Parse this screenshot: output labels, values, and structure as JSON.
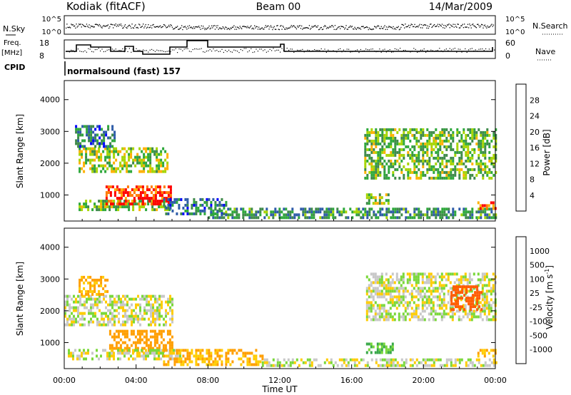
{
  "header": {
    "station": "Kodiak (fitACF)",
    "beam": "Beam 00",
    "date": "14/Mar/2009"
  },
  "left_labels": {
    "nsky": "N.Sky",
    "freq": "Freq.",
    "freq_unit": "[MHz]",
    "cpid": "CPID"
  },
  "right_labels": {
    "nsearch": "N.Search",
    "nave": "Nave"
  },
  "mini_ticks": {
    "nsky_left": [
      "10^5",
      "10^0"
    ],
    "nsky_right": [
      "10^5",
      "10^0"
    ],
    "freq_left": [
      "18",
      "8"
    ],
    "nave_right": [
      "60",
      "0"
    ]
  },
  "cpid_text": "normalsound (fast) 157",
  "x_axis": {
    "ticks": [
      "00:00",
      "04:00",
      "08:00",
      "12:00",
      "16:00",
      "20:00",
      "00:00"
    ],
    "label": "Time UT"
  },
  "colors": {
    "power_scale": [
      "#0000ff",
      "#2e5ca8",
      "#3f8a4a",
      "#2ea83b",
      "#a6d400",
      "#ffb000",
      "#ff7a00",
      "#ff0000"
    ],
    "velocity_scale": [
      "#ff0000",
      "#ff5a00",
      "#ff9e00",
      "#ffcc00",
      "#c8c8c8",
      "#7ad83a",
      "#3aa84a",
      "#2f5fa8",
      "#0000e0"
    ]
  },
  "chart_data": [
    {
      "type": "heatmap",
      "title": "",
      "xlabel": "Time UT",
      "ylabel": "Slant Range [km]",
      "xlim": [
        "00:00",
        "24:00"
      ],
      "ylim": [
        180,
        4600
      ],
      "yticks": [
        1000,
        2000,
        3000,
        4000
      ],
      "colorbar": {
        "label": "Power [dB]",
        "ticks": [
          "28",
          "24",
          "20",
          "16",
          "12",
          "8",
          "4"
        ],
        "range": [
          0,
          30
        ]
      },
      "regions": [
        {
          "t": [
            0.8,
            5.8
          ],
          "range": [
            1700,
            2500
          ],
          "level": 16
        },
        {
          "t": [
            0.6,
            2.8
          ],
          "range": [
            2500,
            3200
          ],
          "level": 8
        },
        {
          "t": [
            0.8,
            5.9
          ],
          "range": [
            500,
            850
          ],
          "level": 14
        },
        {
          "t": [
            2.3,
            5.9
          ],
          "range": [
            700,
            1300
          ],
          "level": 28
        },
        {
          "t": [
            5.5,
            9.0
          ],
          "range": [
            400,
            900
          ],
          "level": 8
        },
        {
          "t": [
            8.0,
            24.0
          ],
          "range": [
            300,
            600
          ],
          "level": 10
        },
        {
          "t": [
            16.7,
            24.0
          ],
          "range": [
            1500,
            3100
          ],
          "level": 14
        },
        {
          "t": [
            16.8,
            18.1
          ],
          "range": [
            700,
            1050
          ],
          "level": 16
        },
        {
          "t": [
            23.0,
            24.0
          ],
          "range": [
            550,
            800
          ],
          "level": 26
        }
      ]
    },
    {
      "type": "heatmap",
      "title": "",
      "xlabel": "Time UT",
      "ylabel": "Slant Range [km]",
      "xlim": [
        "00:00",
        "24:00"
      ],
      "ylim": [
        180,
        4600
      ],
      "yticks": [
        1000,
        2000,
        3000,
        4000
      ],
      "colorbar": {
        "label": "Velocity [m s^-1]",
        "ticks": [
          "1000",
          "500",
          "100",
          "25",
          "-25",
          "-100",
          "-500",
          "-1000"
        ],
        "range": [
          -1000,
          1000
        ]
      },
      "regions": [
        {
          "t": [
            0.0,
            6.0
          ],
          "range": [
            1600,
            2500
          ],
          "value": 0
        },
        {
          "t": [
            0.8,
            2.4
          ],
          "range": [
            2500,
            3100
          ],
          "value": -100
        },
        {
          "t": [
            2.5,
            6.0
          ],
          "range": [
            700,
            1400
          ],
          "value": -300
        },
        {
          "t": [
            0.2,
            6.5
          ],
          "range": [
            500,
            800
          ],
          "value": 0
        },
        {
          "t": [
            5.5,
            11.0
          ],
          "range": [
            300,
            800
          ],
          "value": -100
        },
        {
          "t": [
            11.0,
            24.0
          ],
          "range": [
            250,
            500
          ],
          "value": 0
        },
        {
          "t": [
            16.8,
            18.3
          ],
          "range": [
            700,
            1000
          ],
          "value": 100
        },
        {
          "t": [
            16.8,
            24.0
          ],
          "range": [
            1700,
            3200
          ],
          "value": 0
        },
        {
          "t": [
            21.5,
            23.2
          ],
          "range": [
            2000,
            2800
          ],
          "value": -700
        },
        {
          "t": [
            23.0,
            24.0
          ],
          "range": [
            550,
            800
          ],
          "value": -100
        }
      ]
    }
  ]
}
